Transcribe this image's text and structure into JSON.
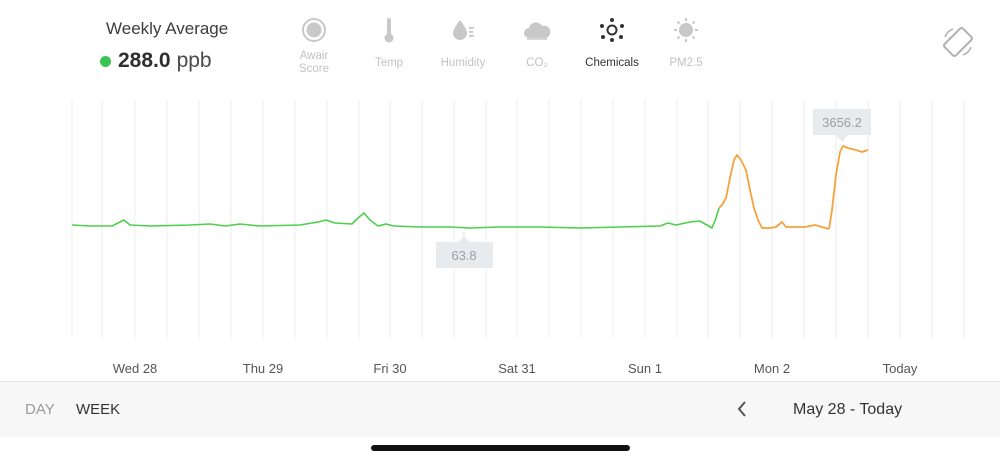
{
  "summary": {
    "title": "Weekly Average",
    "value": "288.0",
    "unit": "ppb",
    "status_color": "#3ac552"
  },
  "metrics": [
    {
      "label": "Awair Score",
      "icon": "awair-score-icon",
      "active": false
    },
    {
      "label": "Temp",
      "icon": "thermometer-icon",
      "active": false
    },
    {
      "label": "Humidity",
      "icon": "humidity-drop-icon",
      "active": false
    },
    {
      "label": "CO₂",
      "icon": "co2-cloud-icon",
      "active": false
    },
    {
      "label": "Chemicals",
      "icon": "chemicals-icon",
      "active": true
    },
    {
      "label": "PM2.5",
      "icon": "pm25-icon",
      "active": false
    }
  ],
  "chart_data": {
    "type": "line",
    "x_ticks": [
      "Wed 28",
      "Thu 29",
      "Fri 30",
      "Sat 31",
      "Sun 1",
      "Mon 2",
      "Today"
    ],
    "min_label": "63.8",
    "max_label": "3656.2",
    "series_color_normal": "#4cd04c",
    "series_color_elevated": "#f5a23a",
    "grid": true
  },
  "footer": {
    "tab_day": "DAY",
    "tab_week": "WEEK",
    "date_range": "May 28 - Today"
  }
}
